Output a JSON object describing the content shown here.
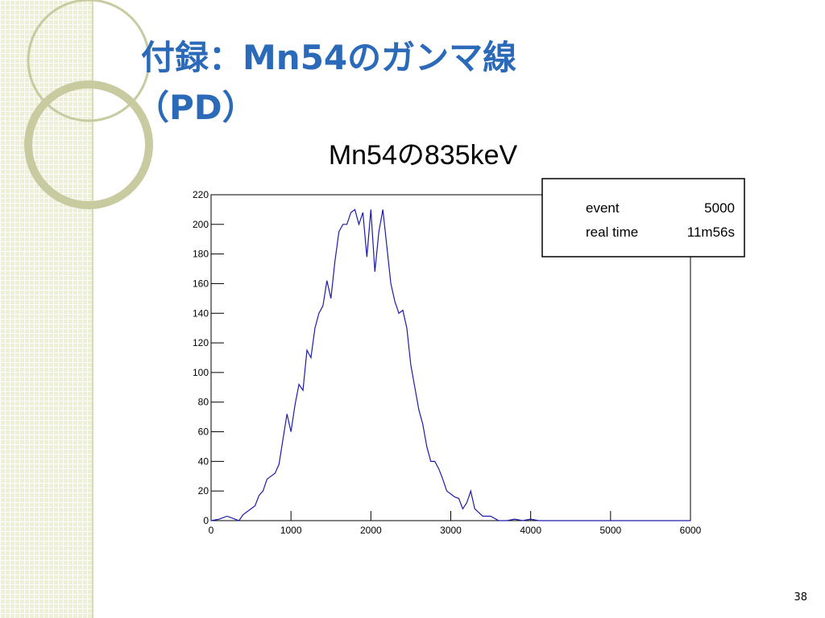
{
  "slide": {
    "title_lines": [
      "付録：Mn54のガンマ線",
      "（PD）"
    ],
    "page_number": "38"
  },
  "chart_data": {
    "type": "line",
    "title": "Mn54の835keV",
    "x": [
      0,
      100,
      200,
      300,
      350,
      400,
      500,
      550,
      600,
      650,
      700,
      800,
      850,
      900,
      950,
      1000,
      1050,
      1100,
      1150,
      1200,
      1250,
      1300,
      1350,
      1400,
      1450,
      1500,
      1550,
      1600,
      1650,
      1700,
      1750,
      1800,
      1850,
      1900,
      1950,
      2000,
      2050,
      2100,
      2150,
      2200,
      2250,
      2300,
      2350,
      2400,
      2450,
      2500,
      2550,
      2600,
      2650,
      2700,
      2750,
      2800,
      2850,
      2900,
      2950,
      3000,
      3050,
      3100,
      3150,
      3200,
      3250,
      3300,
      3400,
      3500,
      3600,
      3700,
      3800,
      3900,
      4000,
      4100,
      6000
    ],
    "values": [
      0,
      1,
      3,
      1,
      0,
      4,
      8,
      10,
      17,
      20,
      28,
      32,
      38,
      55,
      72,
      60,
      78,
      92,
      88,
      115,
      110,
      130,
      140,
      145,
      162,
      150,
      175,
      195,
      200,
      200,
      208,
      210,
      200,
      208,
      178,
      210,
      168,
      195,
      210,
      185,
      160,
      148,
      140,
      142,
      130,
      105,
      90,
      75,
      65,
      50,
      40,
      40,
      35,
      28,
      20,
      18,
      16,
      15,
      8,
      12,
      20,
      8,
      3,
      3,
      0,
      0,
      1,
      0,
      1,
      0,
      0
    ],
    "color": "#1c1ca8",
    "xlim": [
      0,
      6000
    ],
    "xticks": [
      0,
      1000,
      2000,
      3000,
      4000,
      5000,
      6000
    ],
    "ylim": [
      0,
      220
    ],
    "yticks": [
      0,
      20,
      40,
      60,
      80,
      100,
      120,
      140,
      160,
      180,
      200,
      220
    ],
    "stats": [
      [
        "event",
        "5000"
      ],
      [
        "real time",
        "11m56s"
      ]
    ]
  }
}
